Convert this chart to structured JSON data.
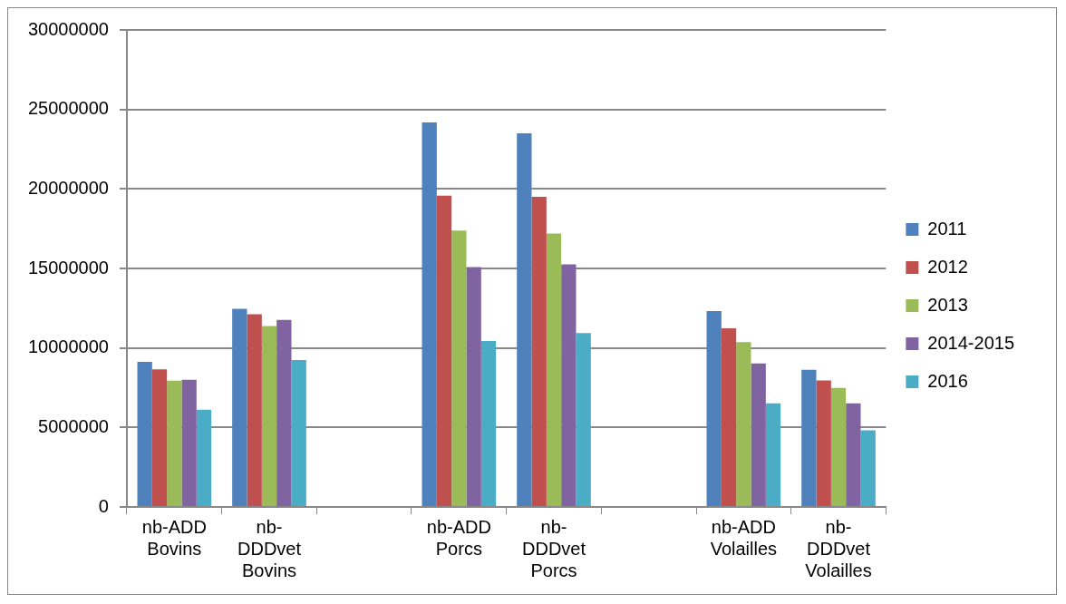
{
  "chart_data": {
    "type": "bar",
    "categories": [
      "nb-ADD Bovins",
      "nb-DDDvet Bovins",
      null,
      "nb-ADD Porcs",
      "nb-DDDvet Porcs",
      null,
      "nb-ADD Volailles",
      "nb-DDDvet Volailles"
    ],
    "series": [
      {
        "name": "2011",
        "color": "#4f81bd",
        "values": [
          9120000,
          12460000,
          null,
          24180000,
          23500000,
          null,
          12320000,
          8620000
        ]
      },
      {
        "name": "2012",
        "color": "#c0504d",
        "values": [
          8660000,
          12120000,
          null,
          19580000,
          19500000,
          null,
          11240000,
          7960000
        ]
      },
      {
        "name": "2013",
        "color": "#9bbb59",
        "values": [
          7940000,
          11380000,
          null,
          17380000,
          17200000,
          null,
          10360000,
          7480000
        ]
      },
      {
        "name": "2014-2015",
        "color": "#8064a2",
        "values": [
          8000000,
          11760000,
          null,
          15080000,
          15260000,
          null,
          9020000,
          6520000
        ]
      },
      {
        "name": "2016",
        "color": "#4bacc6",
        "values": [
          6120000,
          9240000,
          null,
          10440000,
          10940000,
          null,
          6520000,
          4820000
        ]
      }
    ],
    "ylim": [
      0,
      30000000
    ],
    "yticks": [
      0,
      5000000,
      10000000,
      15000000,
      20000000,
      25000000,
      30000000
    ],
    "grid": "y",
    "legend": "right"
  }
}
